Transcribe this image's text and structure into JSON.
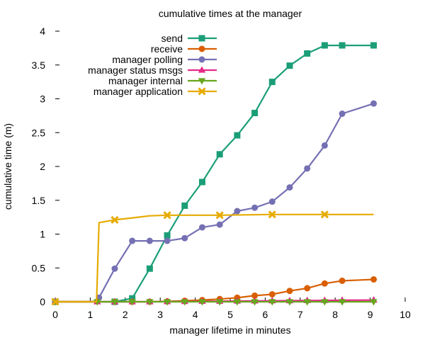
{
  "chart_data": {
    "type": "line",
    "title": "cumulative times at the manager",
    "xlabel": "manager lifetime in minutes",
    "ylabel": "cumulative time (m)",
    "xlim": [
      0,
      10
    ],
    "ylim": [
      0,
      4
    ],
    "xticks": [
      0,
      1,
      2,
      3,
      4,
      5,
      6,
      7,
      8,
      9,
      10
    ],
    "yticks": [
      0,
      0.5,
      1,
      1.5,
      2,
      2.5,
      3,
      3.5,
      4
    ],
    "ytick_labels": [
      "0",
      "0.5",
      "1",
      "1.5",
      "2",
      "2.5",
      "3",
      "3.5",
      "4"
    ],
    "grid": false,
    "legend_position": "top-center",
    "series": [
      {
        "name": "send",
        "color": "#1b9e77",
        "marker": "square",
        "x": [
          0,
          1.2,
          1.7,
          2.2,
          2.7,
          3.2,
          3.7,
          4.2,
          4.7,
          5.2,
          5.7,
          6.2,
          6.7,
          7.2,
          7.7,
          8.2,
          9.1
        ],
        "y": [
          0,
          0,
          0,
          0.05,
          0.49,
          0.98,
          1.42,
          1.77,
          2.18,
          2.46,
          2.79,
          3.25,
          3.49,
          3.67,
          3.79,
          3.79,
          3.79
        ],
        "markers": [
          [
            0,
            0
          ],
          [
            1.7,
            0
          ],
          [
            2.2,
            0.05
          ],
          [
            2.7,
            0.49
          ],
          [
            3.2,
            0.98
          ],
          [
            3.7,
            1.42
          ],
          [
            4.2,
            1.77
          ],
          [
            4.7,
            2.18
          ],
          [
            5.2,
            2.46
          ],
          [
            5.7,
            2.79
          ],
          [
            6.2,
            3.25
          ],
          [
            6.7,
            3.49
          ],
          [
            7.2,
            3.67
          ],
          [
            7.7,
            3.79
          ],
          [
            8.2,
            3.79
          ],
          [
            9.1,
            3.79
          ]
        ]
      },
      {
        "name": "receive",
        "color": "#d95f02",
        "marker": "circle",
        "x": [
          0,
          1.2,
          1.7,
          2.2,
          2.7,
          3.2,
          3.7,
          4.2,
          4.7,
          5.2,
          5.7,
          6.2,
          6.7,
          7.2,
          7.7,
          8.2,
          9.1
        ],
        "y": [
          0,
          0,
          0,
          0,
          0,
          0.005,
          0.015,
          0.025,
          0.04,
          0.06,
          0.09,
          0.11,
          0.16,
          0.2,
          0.27,
          0.31,
          0.33
        ],
        "markers": [
          [
            0,
            0
          ],
          [
            1.7,
            0
          ],
          [
            2.2,
            0
          ],
          [
            2.7,
            0
          ],
          [
            3.2,
            0.005
          ],
          [
            3.7,
            0.015
          ],
          [
            4.2,
            0.025
          ],
          [
            4.7,
            0.04
          ],
          [
            5.2,
            0.06
          ],
          [
            5.7,
            0.09
          ],
          [
            6.2,
            0.11
          ],
          [
            6.7,
            0.16
          ],
          [
            7.2,
            0.2
          ],
          [
            7.7,
            0.27
          ],
          [
            8.2,
            0.31
          ],
          [
            9.1,
            0.33
          ]
        ]
      },
      {
        "name": "manager polling",
        "color": "#7570b3",
        "marker": "circle",
        "x": [
          0,
          1.1,
          1.25,
          1.7,
          2.2,
          2.7,
          3.2,
          3.7,
          4.2,
          4.7,
          5.2,
          5.7,
          6.2,
          6.7,
          7.2,
          7.7,
          8.2,
          9.1
        ],
        "y": [
          0,
          0,
          0.06,
          0.49,
          0.9,
          0.9,
          0.9,
          0.94,
          1.1,
          1.14,
          1.34,
          1.39,
          1.48,
          1.69,
          1.97,
          2.31,
          2.78,
          2.93
        ],
        "markers": [
          [
            0,
            0
          ],
          [
            1.25,
            0.06
          ],
          [
            1.7,
            0.49
          ],
          [
            2.2,
            0.9
          ],
          [
            2.7,
            0.9
          ],
          [
            3.2,
            0.9
          ],
          [
            3.7,
            0.94
          ],
          [
            4.2,
            1.1
          ],
          [
            4.7,
            1.14
          ],
          [
            5.2,
            1.34
          ],
          [
            5.7,
            1.39
          ],
          [
            6.2,
            1.48
          ],
          [
            6.7,
            1.69
          ],
          [
            7.2,
            1.97
          ],
          [
            7.7,
            2.31
          ],
          [
            8.2,
            2.78
          ],
          [
            9.1,
            2.93
          ]
        ]
      },
      {
        "name": "manager status msgs",
        "color": "#e7298a",
        "marker": "triangle-up",
        "x": [
          0,
          1.2,
          1.7,
          2.2,
          2.7,
          3.2,
          3.7,
          4.2,
          4.7,
          5.2,
          5.7,
          6.2,
          6.7,
          7.2,
          7.7,
          8.2,
          9.1
        ],
        "y": [
          0,
          0,
          0,
          0,
          0,
          0.002,
          0.004,
          0.006,
          0.008,
          0.01,
          0.012,
          0.014,
          0.016,
          0.018,
          0.02,
          0.022,
          0.025
        ],
        "markers": [
          [
            0,
            0
          ],
          [
            1.2,
            0
          ],
          [
            1.7,
            0
          ],
          [
            2.2,
            0
          ],
          [
            2.7,
            0
          ],
          [
            3.2,
            0.002
          ],
          [
            3.7,
            0.004
          ],
          [
            4.2,
            0.006
          ],
          [
            4.7,
            0.008
          ],
          [
            5.2,
            0.01
          ],
          [
            5.7,
            0.012
          ],
          [
            6.2,
            0.014
          ],
          [
            6.7,
            0.016
          ],
          [
            7.2,
            0.018
          ],
          [
            7.7,
            0.02
          ],
          [
            8.2,
            0.022
          ],
          [
            9.1,
            0.025
          ]
        ]
      },
      {
        "name": "manager internal",
        "color": "#66a61e",
        "marker": "triangle-down",
        "x": [
          0,
          1.2,
          1.7,
          2.2,
          2.7,
          3.2,
          3.7,
          4.2,
          4.7,
          5.2,
          5.7,
          6.2,
          6.7,
          7.2,
          7.7,
          8.2,
          9.1
        ],
        "y": [
          0,
          0,
          0,
          0,
          0,
          0,
          0,
          0,
          0,
          0,
          0,
          0,
          0,
          0,
          0,
          0,
          0
        ],
        "markers": [
          [
            0,
            0
          ],
          [
            1.2,
            0
          ],
          [
            1.7,
            0
          ],
          [
            2.2,
            0
          ],
          [
            2.7,
            0
          ],
          [
            3.2,
            0
          ],
          [
            3.7,
            0
          ],
          [
            4.2,
            0
          ],
          [
            4.7,
            0
          ],
          [
            5.2,
            0
          ],
          [
            5.7,
            0
          ],
          [
            6.2,
            0
          ],
          [
            6.7,
            0
          ],
          [
            7.2,
            0
          ],
          [
            7.7,
            0
          ],
          [
            8.2,
            0
          ],
          [
            9.1,
            0
          ]
        ]
      },
      {
        "name": "manager application",
        "color": "#e6ab02",
        "marker": "cross",
        "x": [
          0,
          1.18,
          1.25,
          1.7,
          2.2,
          2.7,
          3.2,
          4.7,
          6.2,
          7.7,
          9.1
        ],
        "y": [
          0,
          0,
          1.17,
          1.21,
          1.24,
          1.27,
          1.28,
          1.28,
          1.29,
          1.29,
          1.29
        ],
        "markers": [
          [
            0,
            0
          ],
          [
            1.7,
            1.21
          ],
          [
            3.2,
            1.28
          ],
          [
            4.7,
            1.28
          ],
          [
            6.2,
            1.29
          ],
          [
            7.7,
            1.29
          ]
        ]
      }
    ]
  }
}
